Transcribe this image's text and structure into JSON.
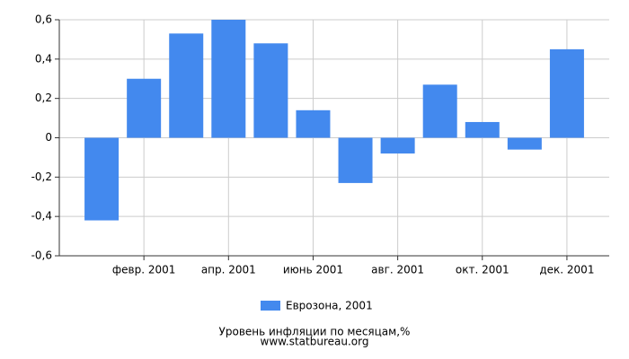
{
  "chart_data": {
    "type": "bar",
    "categories": [
      null,
      "февр. 2001",
      null,
      "апр. 2001",
      null,
      "июнь 2001",
      null,
      "авг. 2001",
      null,
      "окт. 2001",
      null,
      "дек. 2001"
    ],
    "series": [
      {
        "name": "Еврозона, 2001",
        "color": "#4389ee",
        "values": [
          -0.42,
          0.3,
          0.53,
          0.6,
          0.48,
          0.14,
          -0.23,
          -0.08,
          0.27,
          0.08,
          -0.06,
          0.45
        ]
      }
    ],
    "ylim": [
      -0.6,
      0.6
    ],
    "yticks": [
      {
        "value": -0.6,
        "label": "-0,6"
      },
      {
        "value": -0.4,
        "label": "-0,4"
      },
      {
        "value": -0.2,
        "label": "-0,2"
      },
      0,
      {
        "value": 0.2,
        "label": "0,2"
      },
      {
        "value": 0.4,
        "label": "0,4"
      },
      {
        "value": 0.6,
        "label": "0,6"
      }
    ],
    "grid": true,
    "legend": "bottom",
    "footer": [
      "Уровень инфляции по месяцам,%",
      "www.statbureau.org"
    ]
  }
}
